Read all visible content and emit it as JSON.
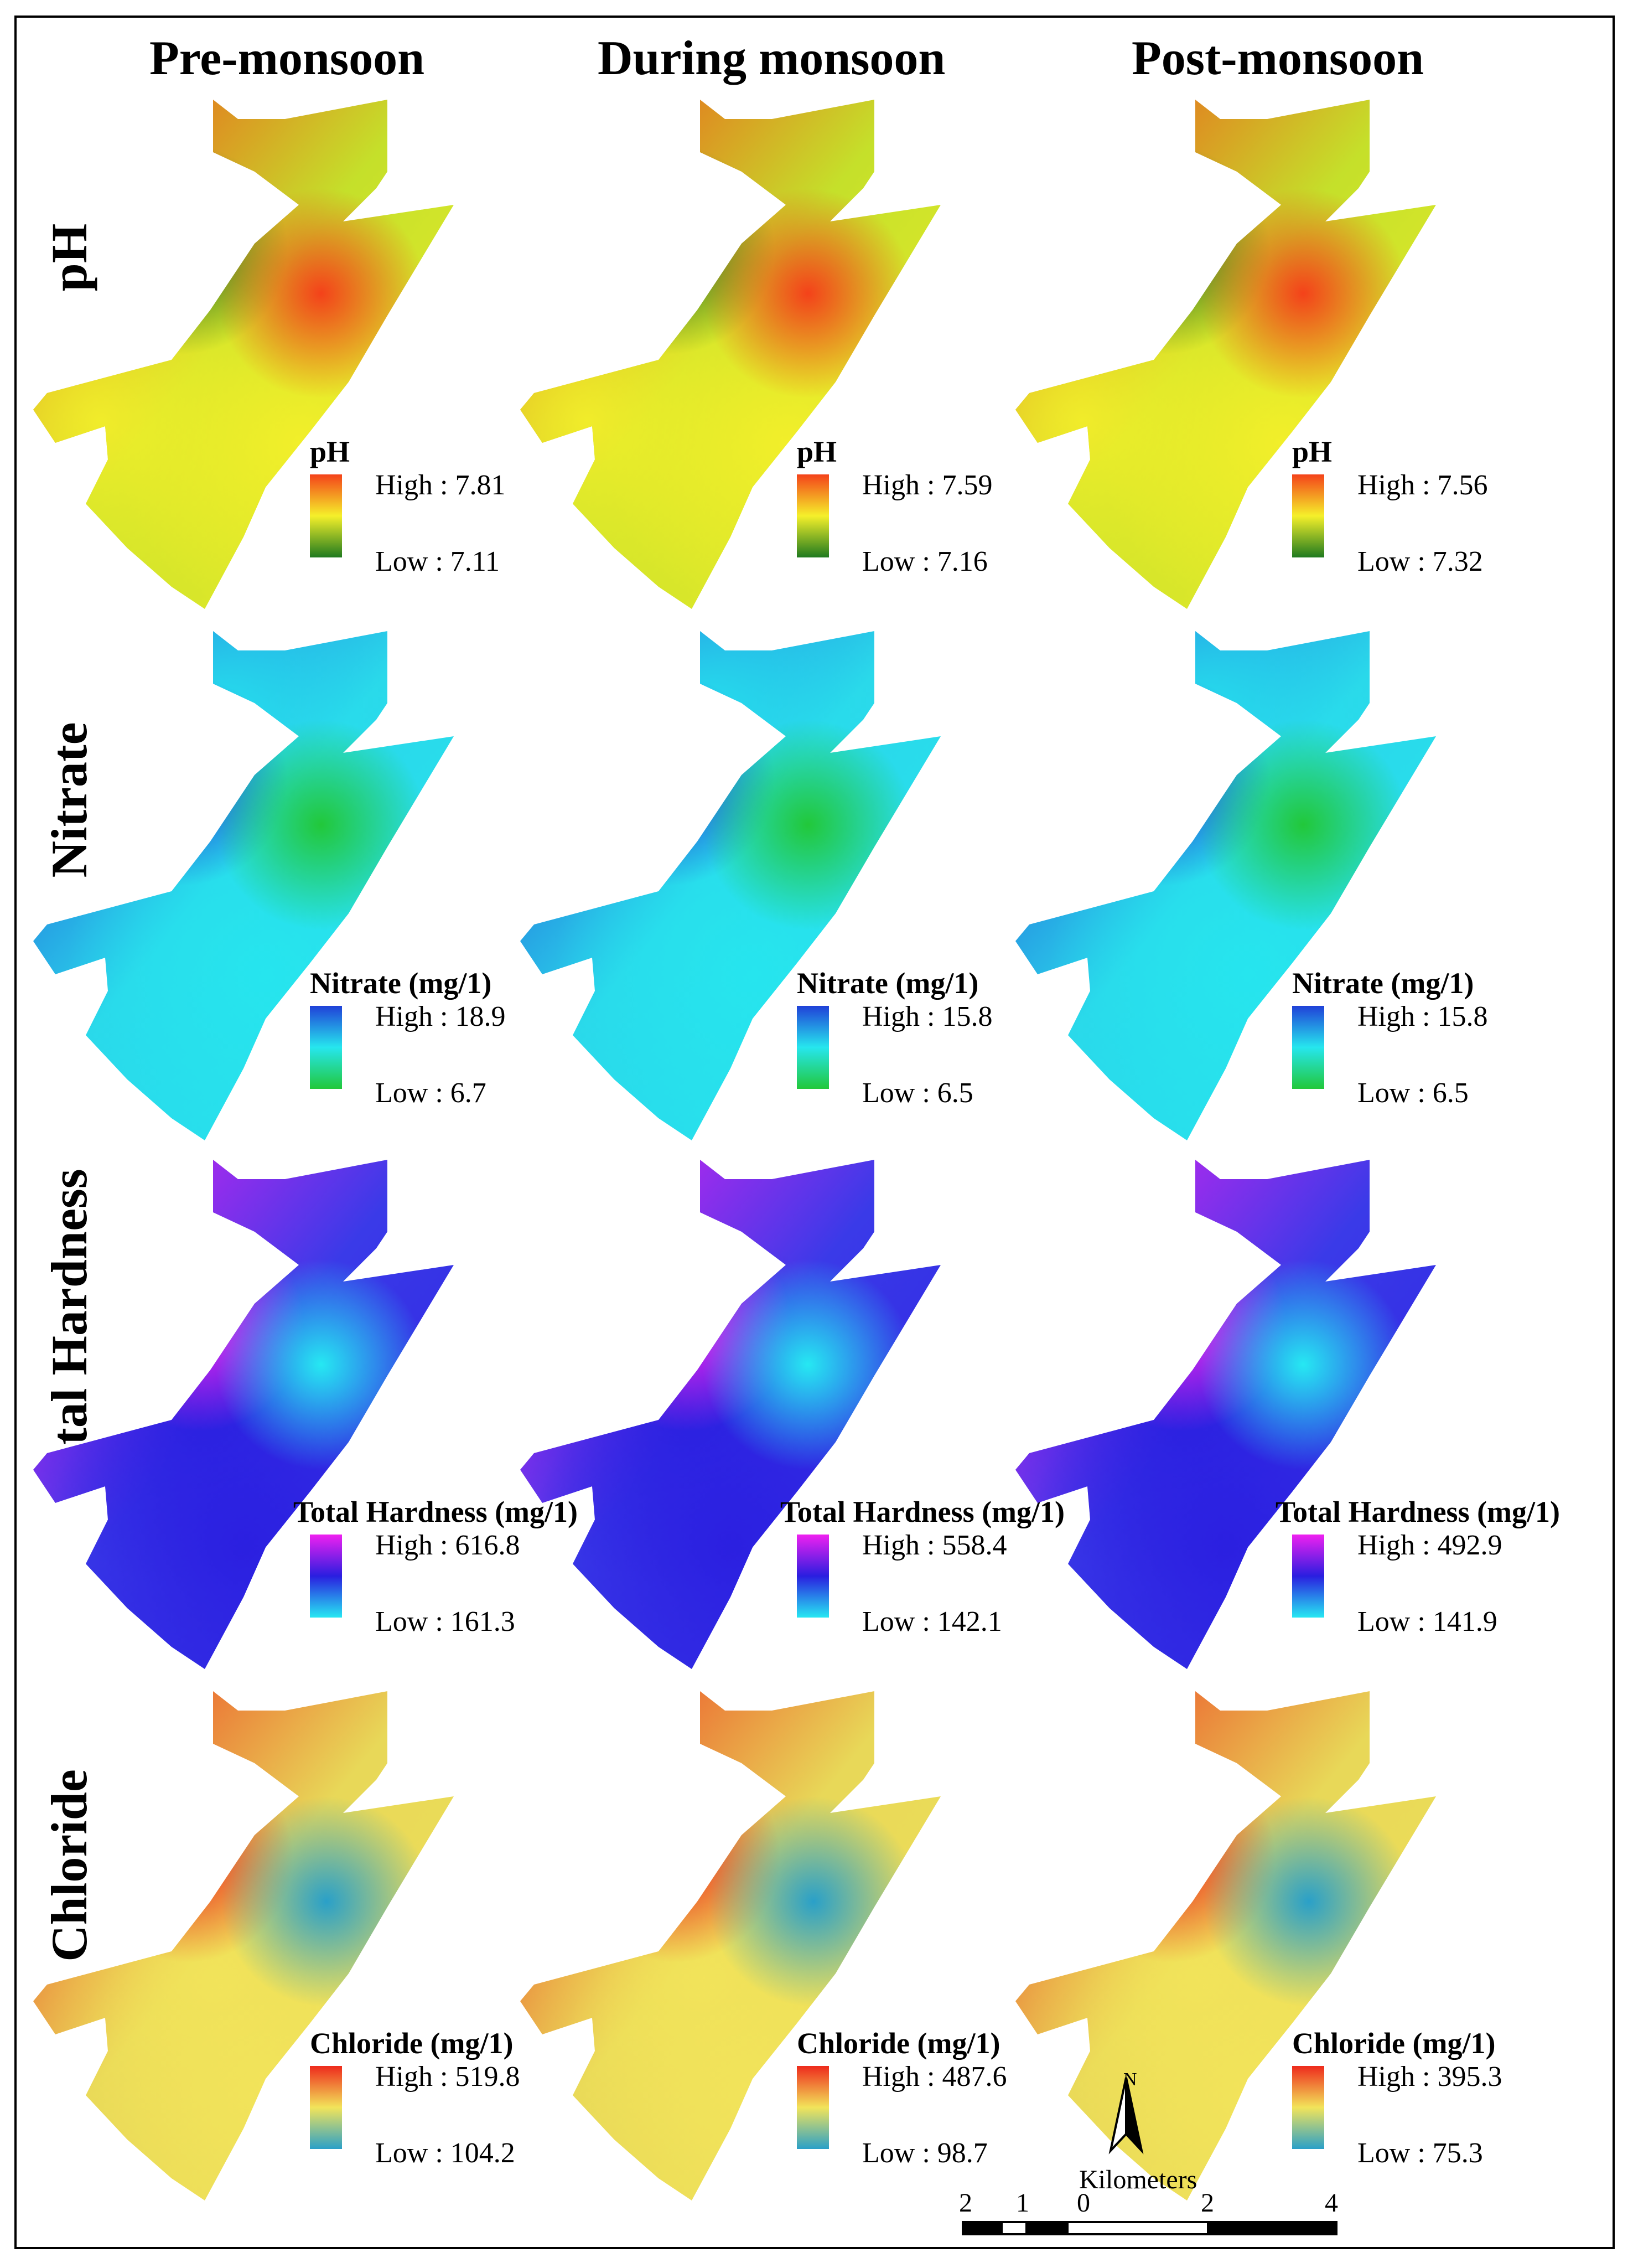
{
  "columns": [
    "Pre-monsoon",
    "During monsoon",
    "Post-monsoon"
  ],
  "rows": [
    {
      "label": "pH",
      "palette": "ph",
      "legends": [
        {
          "title": "pH",
          "high": "High : 7.81",
          "low": "Low : 7.11"
        },
        {
          "title": "pH",
          "high": "High : 7.59",
          "low": "Low : 7.16"
        },
        {
          "title": "pH",
          "high": "High : 7.56",
          "low": "Low : 7.32"
        }
      ]
    },
    {
      "label": "Nitrate",
      "palette": "nitrate",
      "legends": [
        {
          "title": "Nitrate (mg/1)",
          "high": "High : 18.9",
          "low": "Low : 6.7"
        },
        {
          "title": "Nitrate (mg/1)",
          "high": "High : 15.8",
          "low": "Low : 6.5"
        },
        {
          "title": "Nitrate (mg/1)",
          "high": "High : 15.8",
          "low": "Low : 6.5"
        }
      ]
    },
    {
      "label": "Total Hardness",
      "palette": "hardness",
      "legends": [
        {
          "title": "Total Hardness (mg/1)",
          "high": "High : 616.8",
          "low": "Low : 161.3"
        },
        {
          "title": "Total Hardness (mg/1)",
          "high": "High : 558.4",
          "low": "Low : 142.1"
        },
        {
          "title": "Total Hardness (mg/1)",
          "high": "High : 492.9",
          "low": "Low : 141.9"
        }
      ]
    },
    {
      "label": "Chloride",
      "palette": "chloride",
      "legends": [
        {
          "title": "Chloride (mg/1)",
          "high": "High : 519.8",
          "low": "Low : 104.2"
        },
        {
          "title": "Chloride (mg/1)",
          "high": "High : 487.6",
          "low": "Low : 98.7"
        },
        {
          "title": "Chloride (mg/1)",
          "high": "High : 395.3",
          "low": "Low : 75.3"
        }
      ]
    }
  ],
  "palettes": {
    "ph": {
      "high": "#f4421a",
      "mid": "#f5f02a",
      "low": "#1f7a1f",
      "base": "#c5e02a"
    },
    "nitrate": {
      "high": "#2040d8",
      "mid": "#26e6ee",
      "low": "#22c83a",
      "base": "#2ad8ea"
    },
    "hardness": {
      "high": "#f020f0",
      "mid": "#2a1ee0",
      "low": "#26e8f2",
      "base": "#3a3ae8"
    },
    "chloride": {
      "high": "#ee2a1c",
      "mid": "#f2e45a",
      "low": "#2aa0c8",
      "base": "#e8d858"
    }
  },
  "scale": {
    "north": "N",
    "unit": "Kilometers",
    "ticks": [
      "2",
      "1",
      "0",
      "2",
      "4"
    ]
  }
}
